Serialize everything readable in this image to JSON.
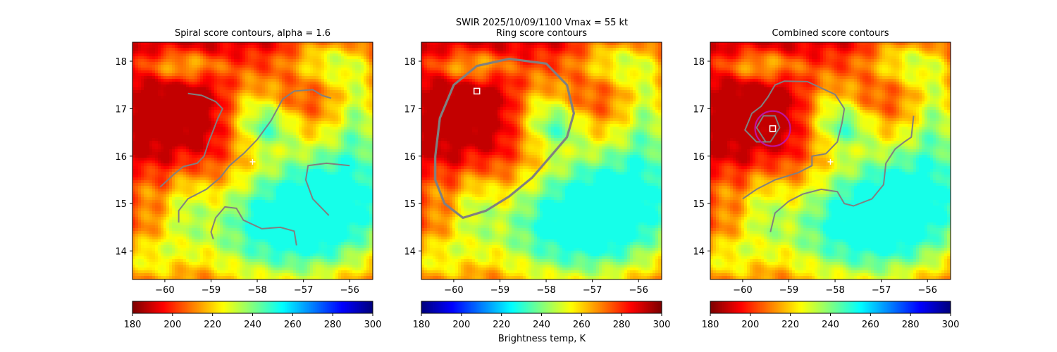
{
  "suptitle": "SWIR  2025/10/09/1100    Vmax = 55 kt",
  "colorbar_label": "Brightness temp, K",
  "colormap": "jet",
  "contour_color": "#808080",
  "marker_color": "#ffffff",
  "ring_color": "#c0149e",
  "chart_data": [
    {
      "type": "heatmap",
      "title": "Spiral score contours, alpha =  1.6",
      "xlim": [
        -60.7,
        -55.5
      ],
      "ylim": [
        13.4,
        18.4
      ],
      "xticks": [
        -60,
        -59,
        -58,
        -57,
        -56
      ],
      "yticks": [
        14,
        15,
        16,
        17,
        18
      ],
      "colorbar": {
        "min": 180,
        "max": 300,
        "ticks": [
          180,
          200,
          220,
          240,
          260,
          280,
          300
        ]
      },
      "center_marker": {
        "lon": -58.1,
        "lat": 15.88
      },
      "contours": [
        [
          [
            -60.1,
            15.35
          ],
          [
            -59.8,
            15.62
          ],
          [
            -59.6,
            15.78
          ],
          [
            -59.3,
            15.85
          ],
          [
            -59.15,
            16.0
          ],
          [
            -59.05,
            16.3
          ],
          [
            -58.95,
            16.55
          ],
          [
            -58.85,
            16.8
          ],
          [
            -58.75,
            17.0
          ],
          [
            -58.9,
            17.15
          ],
          [
            -59.2,
            17.28
          ],
          [
            -59.5,
            17.32
          ]
        ],
        [
          [
            -59.7,
            14.6
          ],
          [
            -59.7,
            14.85
          ],
          [
            -59.5,
            15.1
          ],
          [
            -59.1,
            15.3
          ],
          [
            -58.8,
            15.55
          ],
          [
            -58.6,
            15.8
          ],
          [
            -58.3,
            16.05
          ],
          [
            -58.0,
            16.35
          ],
          [
            -57.7,
            16.75
          ],
          [
            -57.45,
            17.2
          ],
          [
            -57.2,
            17.37
          ],
          [
            -56.8,
            17.4
          ],
          [
            -56.6,
            17.28
          ],
          [
            -56.4,
            17.22
          ]
        ],
        [
          [
            -58.95,
            14.25
          ],
          [
            -59.0,
            14.4
          ],
          [
            -58.9,
            14.7
          ],
          [
            -58.7,
            14.93
          ],
          [
            -58.45,
            14.9
          ],
          [
            -58.3,
            14.65
          ],
          [
            -57.9,
            14.47
          ],
          [
            -57.5,
            14.5
          ],
          [
            -57.2,
            14.42
          ],
          [
            -57.15,
            14.12
          ]
        ],
        [
          [
            -56.45,
            14.75
          ],
          [
            -56.8,
            15.1
          ],
          [
            -56.95,
            15.5
          ],
          [
            -56.9,
            15.8
          ],
          [
            -56.5,
            15.85
          ],
          [
            -56.0,
            15.8
          ]
        ]
      ]
    },
    {
      "type": "heatmap",
      "title": "Ring score contours",
      "xlim": [
        -60.7,
        -55.5
      ],
      "ylim": [
        13.4,
        18.4
      ],
      "xticks": [
        -60,
        -59,
        -58,
        -57,
        -56
      ],
      "yticks": [
        14,
        15,
        16,
        17,
        18
      ],
      "colorbar": {
        "min": 180,
        "max": 300,
        "ticks": [
          180,
          200,
          220,
          240,
          260,
          280,
          300
        ]
      },
      "center_marker": {
        "lon": -59.5,
        "lat": 17.37
      },
      "contours": [
        [
          [
            -60.4,
            16.0
          ],
          [
            -60.3,
            16.8
          ],
          [
            -60.0,
            17.5
          ],
          [
            -59.5,
            17.9
          ],
          [
            -58.8,
            18.05
          ],
          [
            -58.0,
            17.95
          ],
          [
            -57.55,
            17.5
          ],
          [
            -57.4,
            16.9
          ],
          [
            -57.55,
            16.4
          ],
          [
            -57.9,
            16.0
          ],
          [
            -58.3,
            15.55
          ],
          [
            -58.8,
            15.15
          ],
          [
            -59.3,
            14.85
          ],
          [
            -59.8,
            14.7
          ],
          [
            -60.2,
            15.0
          ],
          [
            -60.4,
            15.5
          ],
          [
            -60.4,
            16.0
          ]
        ]
      ]
    },
    {
      "type": "heatmap",
      "title": "Combined score contours",
      "xlim": [
        -60.7,
        -55.5
      ],
      "ylim": [
        13.4,
        18.4
      ],
      "xticks": [
        -60,
        -59,
        -58,
        -57,
        -56
      ],
      "yticks": [
        14,
        15,
        16,
        17,
        18
      ],
      "colorbar": {
        "min": 180,
        "max": 300,
        "ticks": [
          180,
          200,
          220,
          240,
          260,
          280,
          300
        ]
      },
      "center_marker": {
        "lon": -59.35,
        "lat": 16.58
      },
      "contours": [
        [
          [
            -60.0,
            15.1
          ],
          [
            -59.7,
            15.3
          ],
          [
            -59.3,
            15.5
          ],
          [
            -58.8,
            15.65
          ],
          [
            -58.5,
            15.8
          ],
          [
            -58.5,
            16.0
          ],
          [
            -58.2,
            16.05
          ],
          [
            -57.95,
            16.3
          ],
          [
            -57.85,
            16.7
          ],
          [
            -57.8,
            17.0
          ],
          [
            -58.0,
            17.3
          ],
          [
            -58.6,
            17.57
          ],
          [
            -59.1,
            17.58
          ],
          [
            -59.3,
            17.5
          ],
          [
            -59.45,
            17.25
          ],
          [
            -59.6,
            17.05
          ],
          [
            -59.8,
            16.9
          ],
          [
            -59.95,
            16.55
          ],
          [
            -59.7,
            16.3
          ],
          [
            -59.4,
            16.3
          ],
          [
            -59.2,
            16.6
          ],
          [
            -59.3,
            16.85
          ],
          [
            -59.55,
            16.85
          ],
          [
            -59.7,
            16.6
          ],
          [
            -59.5,
            16.3
          ]
        ],
        [
          [
            -59.4,
            14.4
          ],
          [
            -59.3,
            14.8
          ],
          [
            -59.0,
            15.05
          ],
          [
            -58.7,
            15.2
          ],
          [
            -58.3,
            15.3
          ],
          [
            -57.95,
            15.25
          ],
          [
            -57.8,
            15.0
          ],
          [
            -57.6,
            14.95
          ],
          [
            -57.2,
            15.1
          ],
          [
            -56.95,
            15.4
          ],
          [
            -56.9,
            15.85
          ],
          [
            -56.7,
            16.15
          ],
          [
            -56.5,
            16.3
          ],
          [
            -56.35,
            16.4
          ],
          [
            -56.3,
            16.85
          ]
        ]
      ],
      "ring": {
        "lon": -59.35,
        "lat": 16.58,
        "radius_deg": 0.38
      }
    }
  ]
}
